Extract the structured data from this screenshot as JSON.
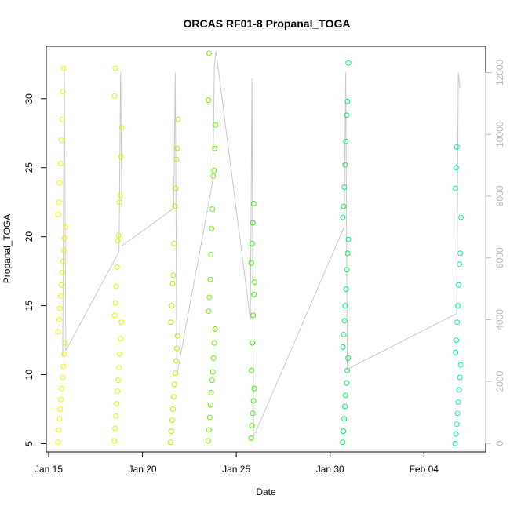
{
  "chart_data": {
    "type": "scatter",
    "title": "ORCAS RF01-8 Propanal_TOGA",
    "xlabel": "Date",
    "ylabel": "Propanal_TOGA",
    "x_ticks": [
      "Jan 15",
      "Jan 20",
      "Jan 25",
      "Jan 30",
      "Feb 04"
    ],
    "y_ticks": [
      5,
      10,
      15,
      20,
      25,
      30
    ],
    "y2_ticks": [
      0,
      2000,
      4000,
      6000,
      8000,
      10000,
      12000
    ],
    "ylim": [
      4.4,
      33.8
    ],
    "y2lim": [
      -280,
      12850
    ],
    "x_range": [
      "2016-01-14T21:00",
      "2016-02-07T07:00"
    ],
    "grid": false,
    "secondary_series": {
      "description_of_axis": "right axis (unlabeled, grey)",
      "color": "#c8c8c8",
      "points": [
        [
          "2016-01-15T18:00",
          2800
        ],
        [
          "2016-01-15T20:00",
          12200
        ],
        [
          "2016-01-15T22:00",
          3000
        ],
        [
          "2016-01-18T18:00",
          6200
        ],
        [
          "2016-01-18T20:00",
          12000
        ],
        [
          "2016-01-18T22:00",
          6400
        ],
        [
          "2016-01-21T16:00",
          7600
        ],
        [
          "2016-01-21T18:00",
          12000
        ],
        [
          "2016-01-21T20:00",
          2200
        ],
        [
          "2016-01-23T18:00",
          8500
        ],
        [
          "2016-01-23T20:00",
          12200
        ],
        [
          "2016-01-23T22:00",
          12700
        ],
        [
          "2016-01-25T18:00",
          4000
        ],
        [
          "2016-01-25T20:00",
          11800
        ],
        [
          "2016-01-25T22:00",
          200
        ],
        [
          "2016-01-30T18:00",
          7000
        ],
        [
          "2016-01-30T20:00",
          12000
        ],
        [
          "2016-01-30T22:00",
          2400
        ],
        [
          "2016-02-05T18:00",
          4200
        ],
        [
          "2016-02-05T20:00",
          12000
        ],
        [
          "2016-02-05T22:00",
          11500
        ]
      ]
    },
    "series": [
      {
        "color": "#f2f200",
        "points": [
          [
            "2016-01-15T12:00",
            5.1
          ],
          [
            "2016-01-15T13:00",
            6.0
          ],
          [
            "2016-01-15T14:00",
            6.8
          ],
          [
            "2016-01-15T15:00",
            7.5
          ],
          [
            "2016-01-15T16:00",
            8.2
          ],
          [
            "2016-01-15T17:00",
            9.0
          ],
          [
            "2016-01-15T18:00",
            9.8
          ],
          [
            "2016-01-15T19:00",
            10.6
          ],
          [
            "2016-01-15T20:00",
            11.5
          ],
          [
            "2016-01-15T21:00",
            12.3
          ],
          [
            "2016-01-15T12:30",
            13.1
          ],
          [
            "2016-01-15T13:30",
            14.0
          ],
          [
            "2016-01-15T14:30",
            14.8
          ],
          [
            "2016-01-15T15:30",
            15.7
          ],
          [
            "2016-01-15T16:30",
            16.5
          ],
          [
            "2016-01-15T17:30",
            17.4
          ],
          [
            "2016-01-15T18:30",
            18.2
          ],
          [
            "2016-01-15T19:30",
            19.0
          ],
          [
            "2016-01-15T20:30",
            19.9
          ],
          [
            "2016-01-15T21:30",
            20.7
          ],
          [
            "2016-01-15T12:15",
            21.6
          ],
          [
            "2016-01-15T13:15",
            22.5
          ],
          [
            "2016-01-15T14:15",
            23.9
          ],
          [
            "2016-01-15T15:15",
            25.3
          ],
          [
            "2016-01-15T16:15",
            27.0
          ],
          [
            "2016-01-15T17:15",
            28.5
          ],
          [
            "2016-01-15T18:15",
            30.5
          ],
          [
            "2016-01-15T19:15",
            32.2
          ]
        ]
      },
      {
        "color": "#dcf500",
        "points": [
          [
            "2016-01-18T12:00",
            5.2
          ],
          [
            "2016-01-18T13:00",
            6.1
          ],
          [
            "2016-01-18T14:00",
            7.0
          ],
          [
            "2016-01-18T15:00",
            7.9
          ],
          [
            "2016-01-18T16:00",
            8.8
          ],
          [
            "2016-01-18T17:00",
            9.6
          ],
          [
            "2016-01-18T18:00",
            10.5
          ],
          [
            "2016-01-18T19:00",
            11.5
          ],
          [
            "2016-01-18T20:00",
            12.6
          ],
          [
            "2016-01-18T21:00",
            13.8
          ],
          [
            "2016-01-18T12:30",
            14.3
          ],
          [
            "2016-01-18T13:30",
            15.2
          ],
          [
            "2016-01-18T14:30",
            16.4
          ],
          [
            "2016-01-18T15:30",
            17.8
          ],
          [
            "2016-01-18T16:30",
            19.7
          ],
          [
            "2016-01-18T17:30",
            20.1
          ],
          [
            "2016-01-18T18:30",
            22.5
          ],
          [
            "2016-01-18T19:30",
            23.0
          ],
          [
            "2016-01-18T20:30",
            25.8
          ],
          [
            "2016-01-18T21:30",
            27.9
          ],
          [
            "2016-01-18T12:15",
            30.2
          ],
          [
            "2016-01-18T13:15",
            32.2
          ]
        ]
      },
      {
        "color": "#a8f500",
        "points": [
          [
            "2016-01-21T12:00",
            5.1
          ],
          [
            "2016-01-21T13:00",
            5.9
          ],
          [
            "2016-01-21T14:00",
            6.7
          ],
          [
            "2016-01-21T15:00",
            7.5
          ],
          [
            "2016-01-21T16:00",
            8.4
          ],
          [
            "2016-01-21T17:00",
            9.3
          ],
          [
            "2016-01-21T18:00",
            10.1
          ],
          [
            "2016-01-21T19:00",
            11.0
          ],
          [
            "2016-01-21T20:00",
            11.9
          ],
          [
            "2016-01-21T21:00",
            12.8
          ],
          [
            "2016-01-21T12:30",
            13.8
          ],
          [
            "2016-01-21T13:30",
            15.0
          ],
          [
            "2016-01-21T14:30",
            16.6
          ],
          [
            "2016-01-21T15:30",
            17.2
          ],
          [
            "2016-01-21T16:30",
            19.5
          ],
          [
            "2016-01-21T17:30",
            22.2
          ],
          [
            "2016-01-21T18:30",
            23.5
          ],
          [
            "2016-01-21T19:30",
            25.6
          ],
          [
            "2016-01-21T20:30",
            26.4
          ],
          [
            "2016-01-21T21:30",
            28.5
          ]
        ]
      },
      {
        "color": "#6cf200",
        "points": [
          [
            "2016-01-23T12:00",
            5.2
          ],
          [
            "2016-01-23T13:00",
            6.0
          ],
          [
            "2016-01-23T14:00",
            6.9
          ],
          [
            "2016-01-23T15:00",
            7.8
          ],
          [
            "2016-01-23T16:00",
            8.7
          ],
          [
            "2016-01-23T17:00",
            9.6
          ],
          [
            "2016-01-23T18:00",
            10.2
          ],
          [
            "2016-01-23T19:00",
            11.2
          ],
          [
            "2016-01-23T20:00",
            12.3
          ],
          [
            "2016-01-23T21:00",
            13.3
          ],
          [
            "2016-01-23T12:30",
            14.6
          ],
          [
            "2016-01-23T13:30",
            15.6
          ],
          [
            "2016-01-23T14:30",
            16.9
          ],
          [
            "2016-01-23T15:30",
            18.7
          ],
          [
            "2016-01-23T16:30",
            20.6
          ],
          [
            "2016-01-23T17:30",
            22.0
          ],
          [
            "2016-01-23T18:30",
            24.4
          ],
          [
            "2016-01-23T19:30",
            24.8
          ],
          [
            "2016-01-23T20:30",
            26.4
          ],
          [
            "2016-01-23T21:30",
            28.1
          ],
          [
            "2016-01-23T12:15",
            29.9
          ],
          [
            "2016-01-23T13:15",
            33.3
          ]
        ]
      },
      {
        "color": "#38f000",
        "points": [
          [
            "2016-01-25T19:00",
            5.4
          ],
          [
            "2016-01-25T20:00",
            6.3
          ],
          [
            "2016-01-25T21:00",
            7.2
          ],
          [
            "2016-01-25T22:00",
            8.1
          ],
          [
            "2016-01-25T23:00",
            9.0
          ],
          [
            "2016-01-25T19:30",
            10.3
          ],
          [
            "2016-01-25T20:30",
            12.3
          ],
          [
            "2016-01-25T21:30",
            14.3
          ],
          [
            "2016-01-25T22:30",
            15.8
          ],
          [
            "2016-01-25T23:30",
            16.7
          ],
          [
            "2016-01-25T19:15",
            18.1
          ],
          [
            "2016-01-25T20:15",
            19.5
          ],
          [
            "2016-01-25T21:15",
            21.0
          ],
          [
            "2016-01-25T22:15",
            22.4
          ]
        ]
      },
      {
        "color": "#00f060",
        "points": [
          [
            "2016-01-30T16:00",
            5.1
          ],
          [
            "2016-01-30T17:00",
            5.9
          ],
          [
            "2016-01-30T18:00",
            6.8
          ],
          [
            "2016-01-30T19:00",
            7.7
          ],
          [
            "2016-01-30T20:00",
            8.5
          ],
          [
            "2016-01-30T21:00",
            9.4
          ],
          [
            "2016-01-30T22:00",
            10.3
          ],
          [
            "2016-01-30T23:00",
            11.2
          ],
          [
            "2016-01-30T16:30",
            12.0
          ],
          [
            "2016-01-30T17:30",
            12.9
          ],
          [
            "2016-01-30T18:30",
            13.9
          ],
          [
            "2016-01-30T19:30",
            15.0
          ],
          [
            "2016-01-30T20:30",
            16.2
          ],
          [
            "2016-01-30T21:30",
            17.6
          ],
          [
            "2016-01-30T22:30",
            18.8
          ],
          [
            "2016-01-30T23:30",
            19.8
          ],
          [
            "2016-01-30T16:15",
            21.4
          ],
          [
            "2016-01-30T17:15",
            22.2
          ],
          [
            "2016-01-30T18:15",
            23.6
          ],
          [
            "2016-01-30T19:15",
            25.2
          ],
          [
            "2016-01-30T20:15",
            26.9
          ],
          [
            "2016-01-30T21:15",
            28.8
          ],
          [
            "2016-01-30T22:15",
            29.8
          ],
          [
            "2016-01-30T23:15",
            32.6
          ]
        ]
      },
      {
        "color": "#00f0b0",
        "points": [
          [
            "2016-02-05T16:00",
            5.0
          ],
          [
            "2016-02-05T17:00",
            5.7
          ],
          [
            "2016-02-05T18:00",
            6.4
          ],
          [
            "2016-02-05T19:00",
            7.2
          ],
          [
            "2016-02-05T20:00",
            8.0
          ],
          [
            "2016-02-05T21:00",
            8.9
          ],
          [
            "2016-02-05T22:00",
            9.8
          ],
          [
            "2016-02-05T23:00",
            10.7
          ],
          [
            "2016-02-05T16:30",
            11.6
          ],
          [
            "2016-02-05T17:30",
            12.5
          ],
          [
            "2016-02-05T18:30",
            13.8
          ],
          [
            "2016-02-05T19:30",
            15.0
          ],
          [
            "2016-02-05T20:30",
            16.5
          ],
          [
            "2016-02-05T21:30",
            18.0
          ],
          [
            "2016-02-05T22:30",
            18.8
          ],
          [
            "2016-02-05T23:30",
            21.4
          ],
          [
            "2016-02-05T16:15",
            23.5
          ],
          [
            "2016-02-05T17:15",
            25.0
          ],
          [
            "2016-02-05T18:15",
            26.5
          ]
        ]
      }
    ]
  }
}
